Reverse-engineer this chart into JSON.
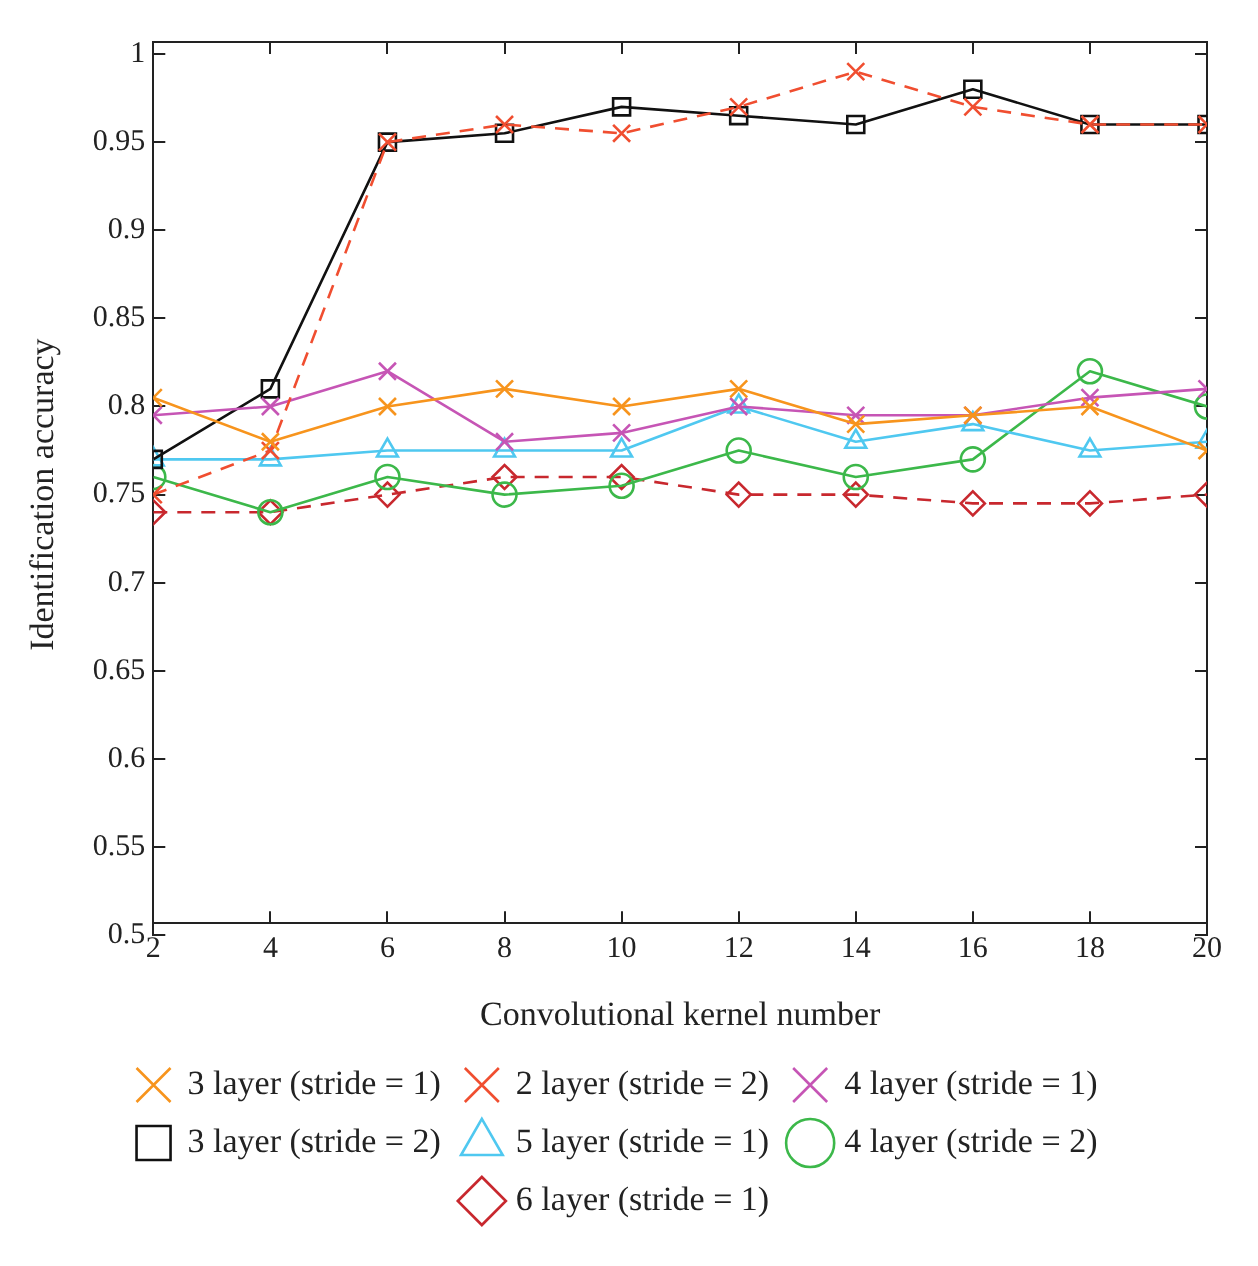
{
  "chart_data": {
    "type": "line",
    "xlabel": "Convolutional kernel number",
    "ylabel": "Identification accuracy",
    "x": [
      2,
      4,
      6,
      8,
      10,
      12,
      14,
      16,
      18,
      20
    ],
    "xlim": [
      2,
      20
    ],
    "xticks": [
      2,
      4,
      6,
      8,
      10,
      12,
      14,
      16,
      18,
      20
    ],
    "ylim": [
      0.5,
      1
    ],
    "yticks": [
      0.5,
      0.55,
      0.6,
      0.65,
      0.7,
      0.75,
      0.8,
      0.85,
      0.9,
      0.95,
      1
    ],
    "grid": false,
    "legend": "bottom",
    "series": [
      {
        "name": "3 layer (stride = 1)",
        "color": "#f7941d",
        "marker": "cross",
        "line_style": "solid",
        "values": [
          0.805,
          0.78,
          0.8,
          0.81,
          0.8,
          0.81,
          0.79,
          0.795,
          0.8,
          0.775
        ]
      },
      {
        "name": "2 layer (stride = 2)",
        "color": "#f04e30",
        "marker": "cross",
        "line_style": "dashed",
        "values": [
          0.75,
          0.775,
          0.95,
          0.96,
          0.955,
          0.97,
          0.99,
          0.97,
          0.96,
          0.96
        ]
      },
      {
        "name": "4 layer (stride = 1)",
        "color": "#c655b5",
        "marker": "cross",
        "line_style": "solid",
        "values": [
          0.795,
          0.8,
          0.82,
          0.78,
          0.785,
          0.8,
          0.795,
          0.795,
          0.805,
          0.81
        ]
      },
      {
        "name": "3 layer (stride = 2)",
        "color": "#111111",
        "marker": "square",
        "line_style": "solid",
        "values": [
          0.77,
          0.81,
          0.95,
          0.955,
          0.97,
          0.965,
          0.96,
          0.98,
          0.96,
          0.96
        ]
      },
      {
        "name": "5 layer (stride = 1)",
        "color": "#4fc8f0",
        "marker": "triangle",
        "line_style": "solid",
        "values": [
          0.77,
          0.77,
          0.775,
          0.775,
          0.775,
          0.8,
          0.78,
          0.79,
          0.775,
          0.78
        ]
      },
      {
        "name": "4 layer (stride = 2)",
        "color": "#3cb84a",
        "marker": "circle",
        "line_style": "solid",
        "values": [
          0.76,
          0.74,
          0.76,
          0.75,
          0.755,
          0.775,
          0.76,
          0.77,
          0.82,
          0.8
        ]
      },
      {
        "name": "6 layer (stride = 1)",
        "color": "#c8282e",
        "marker": "diamond",
        "line_style": "dashed",
        "values": [
          0.74,
          0.74,
          0.75,
          0.76,
          0.76,
          0.75,
          0.75,
          0.745,
          0.745,
          0.75
        ]
      }
    ]
  }
}
